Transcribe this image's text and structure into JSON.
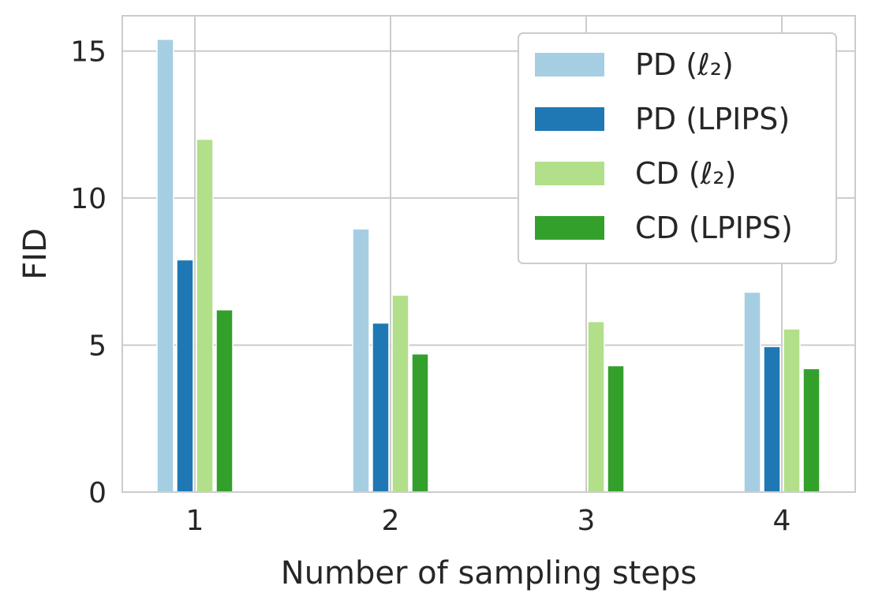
{
  "chart_data": {
    "type": "bar",
    "title": "",
    "xlabel": "Number of sampling steps",
    "ylabel": "FID",
    "categories": [
      "1",
      "2",
      "3",
      "4"
    ],
    "yticks": [
      "0",
      "5",
      "10",
      "15"
    ],
    "ylim": [
      0,
      16.2
    ],
    "grid": true,
    "legend_position": "top-right",
    "series": [
      {
        "name": "PD (ℓ₂)",
        "color": "#a6cee3",
        "values": [
          15.4,
          8.95,
          null,
          6.8
        ]
      },
      {
        "name": "PD (LPIPS)",
        "color": "#1f78b4",
        "values": [
          7.9,
          5.75,
          null,
          4.95
        ]
      },
      {
        "name": "CD (ℓ₂)",
        "color": "#b2df8a",
        "values": [
          12.0,
          6.7,
          5.8,
          5.55
        ]
      },
      {
        "name": "CD (LPIPS)",
        "color": "#33a02c",
        "values": [
          6.2,
          4.7,
          4.3,
          4.2
        ]
      }
    ]
  }
}
